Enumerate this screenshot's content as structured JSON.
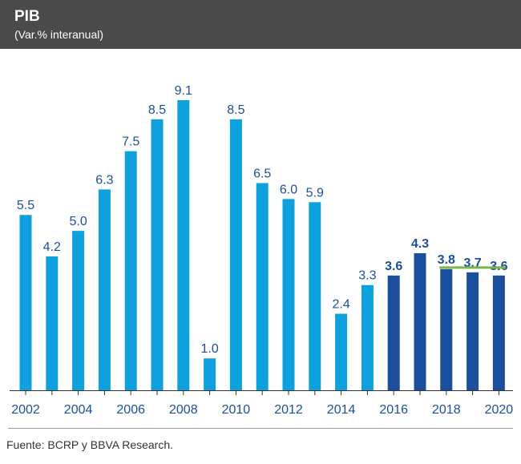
{
  "header": {
    "title": "PIB",
    "subtitle": "(Var.% interanual)"
  },
  "source": "Fuente: BCRP y BBVA Research.",
  "colors": {
    "header_bg": "#4a4a4a",
    "actual": "#0fa1dd",
    "forecast": "#1b4f9c",
    "actual_label": "#1b4f9c",
    "forecast_label": "#1b4f9c",
    "reference_line": "#7ab648",
    "axis": "#333333"
  },
  "chart_data": {
    "type": "bar",
    "title": "PIB",
    "subtitle": "(Var.% interanual)",
    "xlabel": "",
    "ylabel": "",
    "ylim": [
      0,
      9.1
    ],
    "categories": [
      "2002",
      "2003",
      "2004",
      "2005",
      "2006",
      "2007",
      "2008",
      "2009",
      "2010",
      "2011",
      "2012",
      "2013",
      "2014",
      "2015",
      "2016",
      "2017",
      "2018",
      "2019",
      "2020"
    ],
    "values": [
      5.5,
      4.2,
      5.0,
      6.3,
      7.5,
      8.5,
      9.1,
      1.0,
      8.5,
      6.5,
      6.0,
      5.9,
      2.4,
      3.3,
      3.6,
      4.3,
      3.8,
      3.7,
      3.6
    ],
    "labels": [
      "5.5",
      "4.2",
      "5.0",
      "6.3",
      "7.5",
      "8.5",
      "9.1",
      "1.0",
      "8.5",
      "6.5",
      "6.0",
      "5.9",
      "2.4",
      "3.3",
      "3.6",
      "4.3",
      "3.8",
      "3.7",
      "3.6"
    ],
    "series_type": [
      "actual",
      "actual",
      "actual",
      "actual",
      "actual",
      "actual",
      "actual",
      "actual",
      "actual",
      "actual",
      "actual",
      "actual",
      "actual",
      "actual",
      "forecast",
      "forecast",
      "forecast",
      "forecast",
      "forecast"
    ],
    "x_tick_labels": [
      "2002",
      "2004",
      "2006",
      "2008",
      "2010",
      "2012",
      "2014",
      "2016",
      "2018",
      "2020"
    ],
    "reference_line": {
      "value": 3.85,
      "from": "2018",
      "to": "2020"
    },
    "grid": false
  }
}
